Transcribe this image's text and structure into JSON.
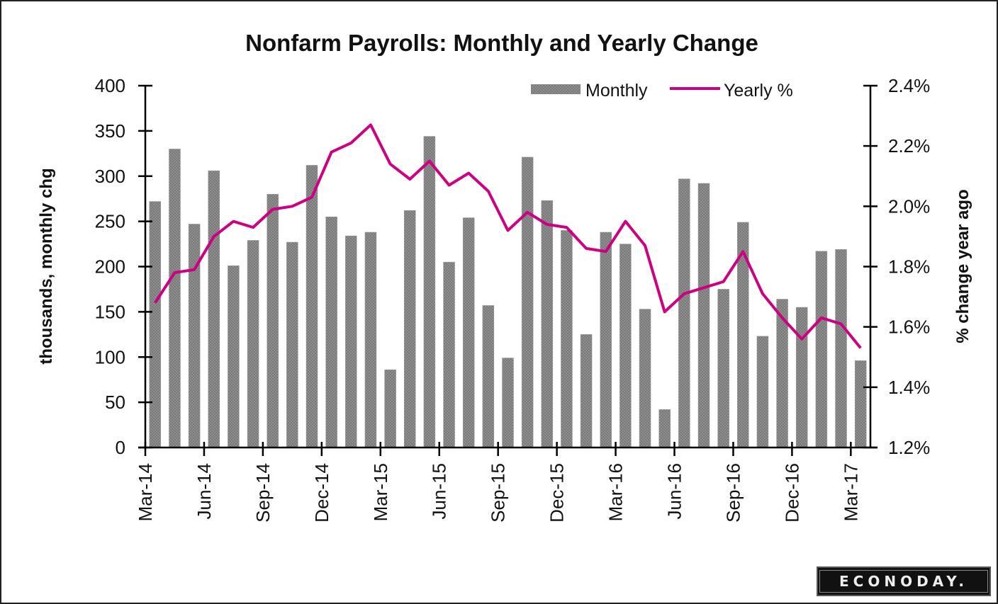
{
  "chart_data": {
    "type": "bar+line",
    "title": "Nonfarm Payrolls: Monthly and Yearly Change",
    "ylabel_left": "thousands, monthly chg",
    "ylabel_right": "% change year ago",
    "ylim_left": [
      0,
      400
    ],
    "ylim_right": [
      1.2,
      2.4
    ],
    "yticks_left": [
      "0",
      "50",
      "100",
      "150",
      "200",
      "250",
      "300",
      "350",
      "400"
    ],
    "yticks_right": [
      "1.2%",
      "1.4%",
      "1.6%",
      "1.8%",
      "2.0%",
      "2.2%",
      "2.4%"
    ],
    "xtick_labels": [
      "Mar-14",
      "Jun-14",
      "Sep-14",
      "Dec-14",
      "Mar-15",
      "Jun-15",
      "Sep-15",
      "Dec-15",
      "Mar-16",
      "Jun-16",
      "Sep-16",
      "Dec-16",
      "Mar-17"
    ],
    "grid": false,
    "legend_placement": "top-right",
    "categories": [
      "Mar-14",
      "Apr-14",
      "May-14",
      "Jun-14",
      "Jul-14",
      "Aug-14",
      "Sep-14",
      "Oct-14",
      "Nov-14",
      "Dec-14",
      "Jan-15",
      "Feb-15",
      "Mar-15",
      "Apr-15",
      "May-15",
      "Jun-15",
      "Jul-15",
      "Aug-15",
      "Sep-15",
      "Oct-15",
      "Nov-15",
      "Dec-15",
      "Jan-16",
      "Feb-16",
      "Mar-16",
      "Apr-16",
      "May-16",
      "Jun-16",
      "Jul-16",
      "Aug-16",
      "Sep-16",
      "Oct-16",
      "Nov-16",
      "Dec-16",
      "Jan-17",
      "Feb-17",
      "Mar-17"
    ],
    "series": [
      {
        "name": "Monthly",
        "type": "bar",
        "axis": "left",
        "color": "#808080",
        "values": [
          272,
          330,
          247,
          306,
          201,
          229,
          280,
          227,
          312,
          255,
          234,
          238,
          86,
          262,
          344,
          205,
          254,
          157,
          99,
          321,
          273,
          240,
          125,
          238,
          225,
          153,
          42,
          297,
          292,
          175,
          249,
          123,
          164,
          155,
          217,
          219,
          96
        ]
      },
      {
        "name": "Yearly %",
        "type": "line",
        "axis": "right",
        "color": "#cc0080",
        "values": [
          1.68,
          1.78,
          1.79,
          1.9,
          1.95,
          1.93,
          1.99,
          2.0,
          2.03,
          2.18,
          2.21,
          2.27,
          2.14,
          2.09,
          2.15,
          2.07,
          2.11,
          2.05,
          1.92,
          1.98,
          1.94,
          1.93,
          1.86,
          1.85,
          1.95,
          1.87,
          1.65,
          1.71,
          1.73,
          1.75,
          1.85,
          1.71,
          1.63,
          1.56,
          1.63,
          1.61,
          1.53
        ]
      }
    ]
  },
  "legend": {
    "monthly": "Monthly",
    "yearly": "Yearly %"
  },
  "brand": {
    "logo_text": "ECONODAY."
  }
}
